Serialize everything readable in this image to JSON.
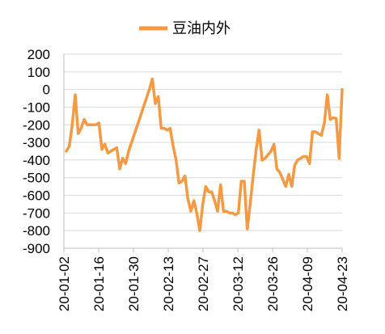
{
  "chart_data": {
    "type": "line",
    "title": "",
    "xlabel": "",
    "ylabel": "",
    "ylim": [
      -900,
      200
    ],
    "yticks": [
      200,
      100,
      0,
      -100,
      -200,
      -300,
      -400,
      -500,
      -600,
      -700,
      -800,
      -900
    ],
    "x_tick_labels": [
      "20-01-02",
      "20-01-16",
      "20-01-30",
      "20-02-13",
      "20-02-27",
      "20-03-12",
      "20-03-26",
      "20-04-09",
      "20-04-23"
    ],
    "grid": "horizontal",
    "legend_position": "top",
    "series": [
      {
        "name": "豆油内外",
        "color": "#f39a43",
        "values": [
          -350,
          -320,
          -200,
          -30,
          -250,
          -220,
          -170,
          -200,
          -200,
          -200,
          -200,
          -190,
          -340,
          -310,
          -360,
          -350,
          -340,
          -330,
          -450,
          -390,
          -420,
          -350,
          -300,
          -250,
          -200,
          -150,
          -100,
          -50,
          0,
          60,
          -80,
          -40,
          -220,
          -220,
          -230,
          -220,
          -320,
          -400,
          -530,
          -520,
          -490,
          -620,
          -690,
          -630,
          -700,
          -800,
          -650,
          -550,
          -580,
          -580,
          -630,
          -690,
          -540,
          -690,
          -690,
          -700,
          -700,
          -710,
          -700,
          -520,
          -520,
          -790,
          -650,
          -490,
          -340,
          -230,
          -400,
          -390,
          -370,
          -350,
          -310,
          -450,
          -470,
          -510,
          -550,
          -480,
          -550,
          -430,
          -400,
          -390,
          -380,
          -380,
          -420,
          -240,
          -240,
          -250,
          -260,
          -190,
          -30,
          -170,
          -160,
          -165,
          -390,
          0
        ]
      }
    ]
  }
}
